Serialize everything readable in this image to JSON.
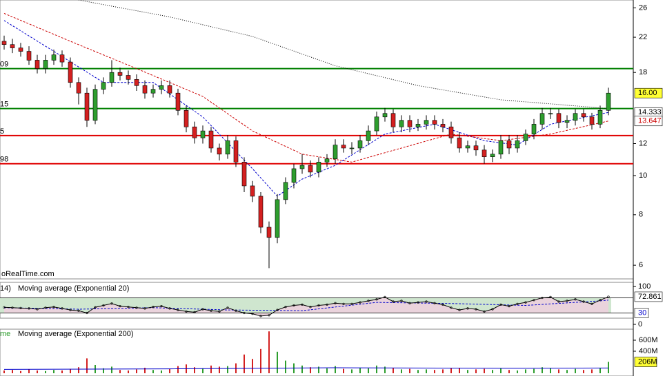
{
  "chart_data": [
    {
      "type": "candlestick",
      "log_scale": true,
      "ylim": [
        5.55,
        27.2
      ],
      "yticks": [
        6,
        8,
        10,
        12,
        18,
        22,
        26
      ],
      "watermark": "oRealTime.com",
      "up_color": "#2e9e2e",
      "down_color": "#d42020",
      "open": [
        21.5,
        21.1,
        20.7,
        20.3,
        19.3,
        18.4,
        19.3,
        19.9,
        19.1,
        17.0,
        16.0,
        13.7,
        16.35,
        17.0,
        18.0,
        17.7,
        17.3,
        16.7,
        16.0,
        16.35,
        16.7,
        16.0,
        14.5,
        13.2,
        12.4,
        12.9,
        11.7,
        11.3,
        12.2,
        10.8,
        9.43,
        8.89,
        7.45,
        7.03,
        8.72,
        9.62,
        10.4,
        10.6,
        10.2,
        10.8,
        11.0,
        11.9,
        11.7,
        11.7,
        12.2,
        12.9,
        13.97,
        14.25,
        13.2,
        13.7,
        13.2,
        13.4,
        13.7,
        13.4,
        13.2,
        12.4,
        11.7,
        11.85,
        11.57,
        11.13,
        11.3,
        12.2,
        11.7,
        12.2,
        12.67,
        13.4,
        14.25,
        14.25,
        13.54,
        13.7,
        14.25,
        13.97,
        13.4,
        14.5
      ],
      "high": [
        22.2,
        21.8,
        21.3,
        20.9,
        19.9,
        19.9,
        20.5,
        20.4,
        19.6,
        17.5,
        16.5,
        16.8,
        17.5,
        19.3,
        18.5,
        18.2,
        17.8,
        17.2,
        16.8,
        17.2,
        17.2,
        16.4,
        14.9,
        13.6,
        13.3,
        13.2,
        12.0,
        12.6,
        12.5,
        11.1,
        9.7,
        9.1,
        7.7,
        9.0,
        9.9,
        10.7,
        11.3,
        10.9,
        11.1,
        11.3,
        12.3,
        12.3,
        12.1,
        12.6,
        13.3,
        14.4,
        14.7,
        14.6,
        14.1,
        14.1,
        13.8,
        14.1,
        14.1,
        13.8,
        13.6,
        12.8,
        12.2,
        12.2,
        11.9,
        11.6,
        12.6,
        12.6,
        12.6,
        13.0,
        13.8,
        14.7,
        14.7,
        14.6,
        14.1,
        14.6,
        14.6,
        14.3,
        14.9,
        16.5
      ],
      "low": [
        20.5,
        20.1,
        19.7,
        18.8,
        17.9,
        17.9,
        18.8,
        18.6,
        16.5,
        15.0,
        13.2,
        13.4,
        15.9,
        16.6,
        17.2,
        16.8,
        16.2,
        15.5,
        15.6,
        15.9,
        15.6,
        14.1,
        12.8,
        12.0,
        12.0,
        11.4,
        10.9,
        11.0,
        10.5,
        9.1,
        8.6,
        7.2,
        5.9,
        6.8,
        8.5,
        9.3,
        10.1,
        9.9,
        9.9,
        10.5,
        10.7,
        11.4,
        11.3,
        11.4,
        11.9,
        12.6,
        13.6,
        12.8,
        12.8,
        12.8,
        12.9,
        13.0,
        13.0,
        12.8,
        12.0,
        11.4,
        11.4,
        11.2,
        10.7,
        10.8,
        11.0,
        11.3,
        11.4,
        11.9,
        12.3,
        13.0,
        13.8,
        13.1,
        13.1,
        13.3,
        13.6,
        13.0,
        13.1,
        14.1
      ],
      "close": [
        21.1,
        20.7,
        20.3,
        19.3,
        18.4,
        19.3,
        19.9,
        19.1,
        17.0,
        16.0,
        13.7,
        16.35,
        17.0,
        18.0,
        17.7,
        17.3,
        16.7,
        16.0,
        16.35,
        16.7,
        16.0,
        14.5,
        13.2,
        12.4,
        12.9,
        11.7,
        11.3,
        12.2,
        10.8,
        9.43,
        8.89,
        7.45,
        7.03,
        8.72,
        9.62,
        10.4,
        10.6,
        10.2,
        10.8,
        11.0,
        11.9,
        11.7,
        11.7,
        12.2,
        12.9,
        13.97,
        14.25,
        13.2,
        13.7,
        13.2,
        13.4,
        13.7,
        13.4,
        13.2,
        12.4,
        11.7,
        11.85,
        11.57,
        11.13,
        11.3,
        12.2,
        11.7,
        12.2,
        12.67,
        13.4,
        14.25,
        14.25,
        13.54,
        13.7,
        14.25,
        13.97,
        13.4,
        14.5,
        16.0
      ],
      "last_price": {
        "value": 16.0,
        "label": "16.00"
      },
      "series": [
        {
          "color": "#000000",
          "x": [
            9,
            20,
            30,
            40,
            50,
            60,
            73
          ],
          "values": [
            27.2,
            24.7,
            22.1,
            18.7,
            16.7,
            15.4,
            14.65
          ]
        },
        {
          "color": "#0000cc",
          "x": [
            0,
            6,
            12,
            18,
            24,
            30,
            33,
            36,
            40,
            46,
            52,
            58,
            62,
            66,
            73
          ],
          "values": [
            24.2,
            20.3,
            17.0,
            17.0,
            13.97,
            10.4,
            8.89,
            9.8,
            10.6,
            12.67,
            13.4,
            12.2,
            11.9,
            13.4,
            14.333
          ]
        },
        {
          "color": "#cc0000",
          "x": [
            0,
            8,
            16,
            24,
            30,
            36,
            42,
            48,
            54,
            60,
            66,
            73
          ],
          "values": [
            25.2,
            21.5,
            18.4,
            15.7,
            12.9,
            11.3,
            10.8,
            11.7,
            12.67,
            12.2,
            12.67,
            13.647
          ]
        }
      ],
      "hlines": [
        {
          "value": 18.4,
          "label": "09",
          "color": "#008000"
        },
        {
          "value": 14.65,
          "label": "15",
          "color": "#008000"
        },
        {
          "value": 12.56,
          "label": "5",
          "color": "#e00000"
        },
        {
          "value": 10.7,
          "label": "98",
          "color": "#e00000"
        }
      ]
    },
    {
      "type": "line",
      "label_prefix": "14)",
      "label": "Moving average (Exponential 20)",
      "ylim": [
        0,
        100
      ],
      "yticks": [
        100,
        30,
        0
      ],
      "upper_line": 70,
      "series": [
        {
          "color": "#000000",
          "values": [
            45,
            44,
            43,
            42,
            40,
            44,
            46,
            42,
            38,
            36,
            30,
            45,
            50,
            55,
            48,
            46,
            44,
            42,
            46,
            48,
            42,
            38,
            34,
            32,
            40,
            36,
            34,
            44,
            36,
            30,
            28,
            22,
            24,
            38,
            46,
            50,
            52,
            46,
            50,
            52,
            56,
            54,
            54,
            58,
            62,
            66,
            72,
            60,
            62,
            56,
            58,
            60,
            56,
            52,
            44,
            38,
            42,
            40,
            34,
            40,
            52,
            48,
            54,
            58,
            64,
            70,
            72,
            60,
            62,
            66,
            60,
            54,
            64,
            72.861
          ]
        },
        {
          "color": "#0000cc",
          "x": [
            0,
            9,
            18,
            27,
            36,
            45,
            54,
            63,
            72,
            73
          ],
          "values": [
            44,
            40,
            44,
            38,
            36,
            58,
            55,
            50,
            62,
            64
          ]
        }
      ]
    },
    {
      "type": "bar",
      "label_prefix": "me",
      "label": "Moving average (Exponential 200)",
      "ylim": [
        0,
        800000000
      ],
      "yticks": [
        {
          "value": 600000000,
          "label": "600M"
        },
        {
          "value": 400000000,
          "label": "400M"
        }
      ],
      "values": [
        50000000.0,
        60000000.0,
        40000000.0,
        70000000.0,
        50000000.0,
        40000000.0,
        60000000.0,
        50000000.0,
        80000000.0,
        110000000.0,
        270000000.0,
        150000000.0,
        90000000.0,
        120000000.0,
        60000000.0,
        50000000.0,
        70000000.0,
        100000000.0,
        60000000.0,
        50000000.0,
        80000000.0,
        130000000.0,
        160000000.0,
        110000000.0,
        90000000.0,
        140000000.0,
        120000000.0,
        130000000.0,
        180000000.0,
        340000000.0,
        260000000.0,
        440000000.0,
        760000000.0,
        390000000.0,
        230000000.0,
        180000000.0,
        140000000.0,
        110000000.0,
        120000000.0,
        90000000.0,
        130000000.0,
        80000000.0,
        70000000.0,
        100000000.0,
        90000000.0,
        140000000.0,
        120000000.0,
        100000000.0,
        70000000.0,
        80000000.0,
        60000000.0,
        70000000.0,
        60000000.0,
        70000000.0,
        90000000.0,
        100000000.0,
        60000000.0,
        70000000.0,
        80000000.0,
        60000000.0,
        90000000.0,
        60000000.0,
        50000000.0,
        70000000.0,
        80000000.0,
        110000000.0,
        90000000.0,
        70000000.0,
        60000000.0,
        80000000.0,
        60000000.0,
        70000000.0,
        90000000.0,
        206000000.0
      ],
      "value_labels": [
        null,
        null,
        null,
        null,
        null,
        null,
        null,
        null,
        null,
        null,
        null,
        null,
        null,
        null,
        null,
        null,
        null,
        null,
        null,
        null,
        null,
        null,
        null,
        null,
        null,
        null,
        null,
        null,
        null,
        null,
        null,
        null,
        null,
        null,
        null,
        null,
        null,
        null,
        null,
        null,
        null,
        null,
        null,
        null,
        null,
        null,
        null,
        null,
        null,
        null,
        null,
        null,
        null,
        null,
        null,
        null,
        null,
        null,
        null,
        null,
        null,
        null,
        null,
        null,
        null,
        null,
        null,
        null,
        null,
        null,
        null,
        null,
        null,
        "206M"
      ],
      "ma": {
        "color": "#0000cc",
        "x": [
          0,
          20,
          40,
          60,
          73
        ],
        "values": [
          70000000.0,
          80000000.0,
          100000000.0,
          90000000.0,
          95000000.0
        ]
      }
    }
  ]
}
